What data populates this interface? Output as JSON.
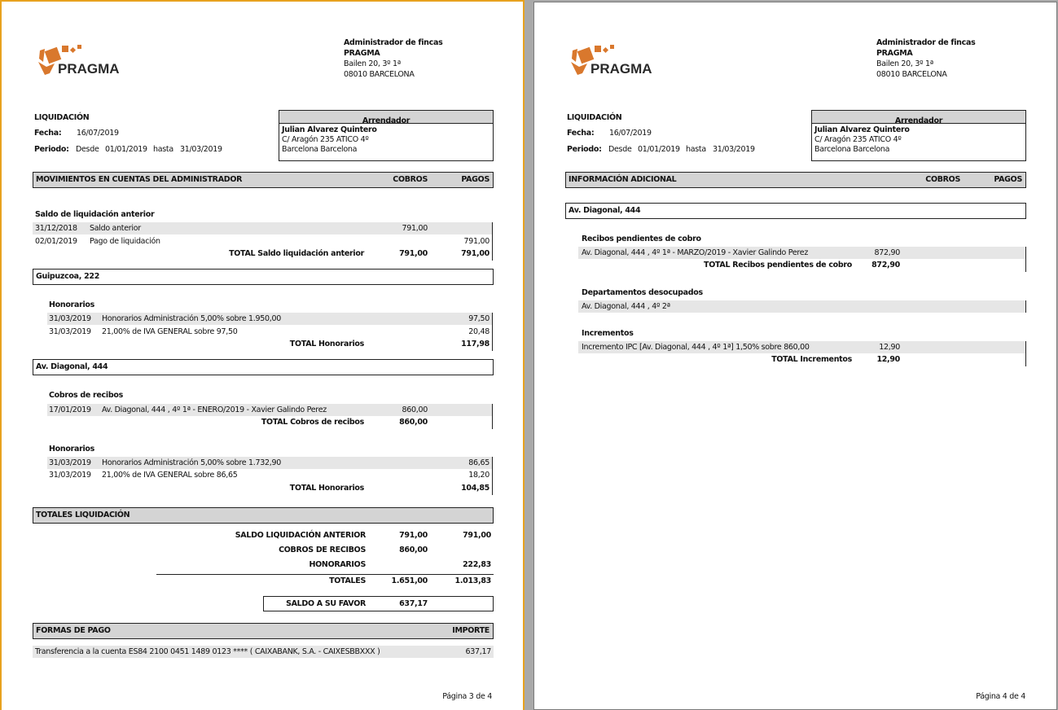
{
  "header": {
    "company_line1": "Administrador de fincas",
    "company_line2": "PRAGMA",
    "address1": "Bailen 20, 3º 1ª",
    "address2": "08010 BARCELONA",
    "logo_text": "PRAGMA",
    "logo_color": "#d9782d"
  },
  "doc": {
    "title": "LIQUIDACIÓN",
    "fecha_label": "Fecha:",
    "fecha": "16/07/2019",
    "periodo_label": "Periodo:",
    "desde_label": "Desde",
    "desde": "01/01/2019",
    "hasta_label": "hasta",
    "hasta": "31/03/2019"
  },
  "arrendador": {
    "title": "Arrendador",
    "name": "Julian Alvarez Quintero",
    "address": "C/ Aragón 235 ATICO 4º",
    "city": "Barcelona Barcelona"
  },
  "page3": {
    "section_title": "MOVIMIENTOS EN CUENTAS DEL ADMINISTRADOR",
    "cobros_label": "COBROS",
    "pagos_label": "PAGOS",
    "saldo": {
      "title": "Saldo de liquidación anterior",
      "rows": [
        {
          "date": "31/12/2018",
          "desc": "Saldo anterior",
          "cobros": "791,00",
          "pagos": ""
        },
        {
          "date": "02/01/2019",
          "desc": "Pago de liquidación",
          "cobros": "",
          "pagos": "791,00"
        }
      ],
      "total_label": "TOTAL Saldo liquidación anterior",
      "total_cobros": "791,00",
      "total_pagos": "791,00"
    },
    "prop1": {
      "name": "Guipuzcoa, 222",
      "honorarios": {
        "title": "Honorarios",
        "rows": [
          {
            "date": "31/03/2019",
            "desc": "Honorarios Administración 5,00% sobre 1.950,00",
            "pagos": "97,50"
          },
          {
            "date": "31/03/2019",
            "desc": "21,00% de IVA GENERAL sobre 97,50",
            "pagos": "20,48"
          }
        ],
        "total_label": "TOTAL Honorarios",
        "total_pagos": "117,98"
      }
    },
    "prop2": {
      "name": "Av. Diagonal, 444",
      "cobros": {
        "title": "Cobros de recibos",
        "rows": [
          {
            "date": "17/01/2019",
            "desc": "Av. Diagonal, 444 , 4º 1ª - ENERO/2019 - Xavier Galindo Perez",
            "cobros": "860,00"
          }
        ],
        "total_label": "TOTAL Cobros de recibos",
        "total_cobros": "860,00"
      },
      "honorarios": {
        "title": "Honorarios",
        "rows": [
          {
            "date": "31/03/2019",
            "desc": "Honorarios Administración 5,00% sobre 1.732,90",
            "pagos": "86,65"
          },
          {
            "date": "31/03/2019",
            "desc": "21,00% de IVA GENERAL sobre 86,65",
            "pagos": "18,20"
          }
        ],
        "total_label": "TOTAL Honorarios",
        "total_pagos": "104,85"
      }
    },
    "totales": {
      "title": "TOTALES LIQUIDACIÓN",
      "rows": [
        {
          "label": "SALDO LIQUIDACIÓN ANTERIOR",
          "cobros": "791,00",
          "pagos": "791,00"
        },
        {
          "label": "COBROS DE RECIBOS",
          "cobros": "860,00",
          "pagos": ""
        },
        {
          "label": "HONORARIOS",
          "cobros": "",
          "pagos": "222,83"
        }
      ],
      "totales_label": "TOTALES",
      "totales_cobros": "1.651,00",
      "totales_pagos": "1.013,83",
      "saldo_label": "SALDO A SU FAVOR",
      "saldo_value": "637,17"
    },
    "formas_pago": {
      "title": "FORMAS DE PAGO",
      "importe_label": "IMPORTE",
      "desc": "Transferencia a la cuenta ES84 2100 0451 1489 0123 **** ( CAIXABANK, S.A. - CAIXESBBXXX )",
      "importe": "637,17"
    },
    "page_number": "Página 3 de 4"
  },
  "page4": {
    "section_title": "INFORMACIÓN ADICIONAL",
    "cobros_label": "COBROS",
    "pagos_label": "PAGOS",
    "prop_name": "Av. Diagonal, 444",
    "recibos": {
      "title": "Recibos pendientes de cobro",
      "row_desc": "Av. Diagonal, 444 , 4º 1ª - MARZO/2019 - Xavier Galindo Perez",
      "row_value": "872,90",
      "total_label": "TOTAL Recibos pendientes de cobro",
      "total_value": "872,90"
    },
    "desocupados": {
      "title": "Departamentos desocupados",
      "row_desc": "Av. Diagonal, 444 , 4º 2ª"
    },
    "incrementos": {
      "title": "Incrementos",
      "row_desc": "Incremento IPC [Av. Diagonal, 444 , 4º 1ª] 1,50% sobre 860,00",
      "row_value": "12,90",
      "total_label": "TOTAL Incrementos",
      "total_value": "12,90"
    },
    "page_number": "Página 4 de 4"
  }
}
